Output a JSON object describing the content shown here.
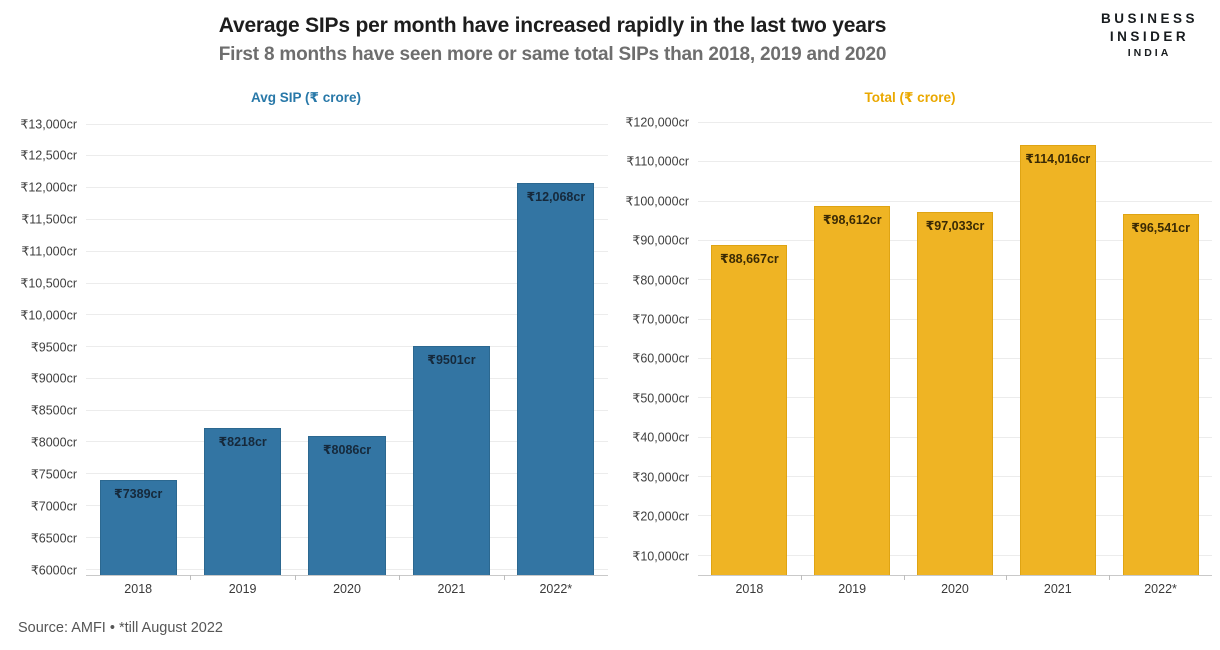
{
  "header": {
    "title": "Average SIPs per month have increased rapidly in the last two years",
    "subtitle": "First 8 months have seen more or same total SIPs than 2018, 2019 and 2020"
  },
  "logo": {
    "line1": "BUSINESS",
    "line2": "INSIDER",
    "line3": "INDIA"
  },
  "footer": {
    "source_line": "Source: AMFI • *till August 2022"
  },
  "chart_data": [
    {
      "type": "bar",
      "title": "Avg SIP (₹ crore)",
      "title_color": "#2878a8",
      "bar_color": "#3375a3",
      "bar_border_color": "#2c6890",
      "bar_label_color": "#16293b",
      "categories": [
        "2018",
        "2019",
        "2020",
        "2021",
        "2022*"
      ],
      "values": [
        7389,
        8218,
        8086,
        9501,
        12068
      ],
      "bar_labels": [
        "₹7389cr",
        "₹8218cr",
        "₹8086cr",
        "₹9501cr",
        "₹12,068cr"
      ],
      "ylim": [
        5900,
        13150
      ],
      "grid": true,
      "legend": "none",
      "xlabel": "",
      "ylabel": "",
      "yticks": [
        {
          "value": 6000,
          "label": "₹6000cr"
        },
        {
          "value": 6500,
          "label": "₹6500cr"
        },
        {
          "value": 7000,
          "label": "₹7000cr"
        },
        {
          "value": 7500,
          "label": "₹7500cr"
        },
        {
          "value": 8000,
          "label": "₹8000cr"
        },
        {
          "value": 8500,
          "label": "₹8500cr"
        },
        {
          "value": 9000,
          "label": "₹9000cr"
        },
        {
          "value": 9500,
          "label": "₹9500cr"
        },
        {
          "value": 10000,
          "label": "₹10,000cr"
        },
        {
          "value": 10500,
          "label": "₹10,500cr"
        },
        {
          "value": 11000,
          "label": "₹11,000cr"
        },
        {
          "value": 11500,
          "label": "₹11,500cr"
        },
        {
          "value": 12000,
          "label": "₹12,000cr"
        },
        {
          "value": 12500,
          "label": "₹12,500cr"
        },
        {
          "value": 13000,
          "label": "₹13,000cr"
        }
      ]
    },
    {
      "type": "bar",
      "title": "Total (₹ crore)",
      "title_color": "#eaa800",
      "bar_color": "#efb424",
      "bar_border_color": "#dfa413",
      "bar_label_color": "#3a2a05",
      "categories": [
        "2018",
        "2019",
        "2020",
        "2021",
        "2022*"
      ],
      "values": [
        88667,
        98612,
        97033,
        114016,
        96541
      ],
      "bar_labels": [
        "₹88,667cr",
        "₹98,612cr",
        "₹97,033cr",
        "₹114,016cr",
        "₹96,541cr"
      ],
      "ylim": [
        4800,
        122000
      ],
      "grid": true,
      "legend": "none",
      "xlabel": "",
      "ylabel": "",
      "yticks": [
        {
          "value": 10000,
          "label": "₹10,000cr"
        },
        {
          "value": 20000,
          "label": "₹20,000cr"
        },
        {
          "value": 30000,
          "label": "₹30,000cr"
        },
        {
          "value": 40000,
          "label": "₹40,000cr"
        },
        {
          "value": 50000,
          "label": "₹50,000cr"
        },
        {
          "value": 60000,
          "label": "₹60,000cr"
        },
        {
          "value": 70000,
          "label": "₹70,000cr"
        },
        {
          "value": 80000,
          "label": "₹80,000cr"
        },
        {
          "value": 90000,
          "label": "₹90,000cr"
        },
        {
          "value": 100000,
          "label": "₹100,000cr"
        },
        {
          "value": 110000,
          "label": "₹110,000cr"
        },
        {
          "value": 120000,
          "label": "₹120,000cr"
        }
      ]
    }
  ]
}
